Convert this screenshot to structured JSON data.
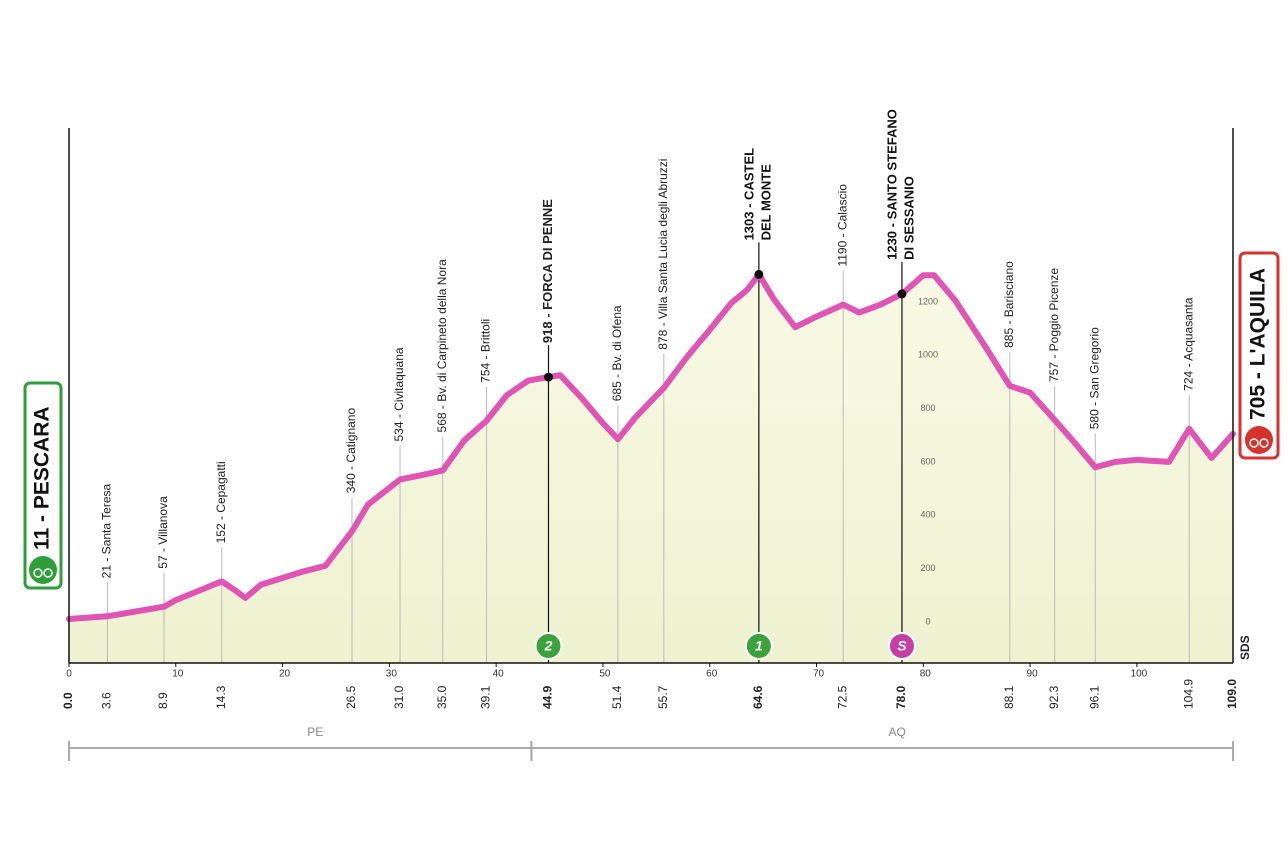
{
  "chart_data": {
    "type": "area",
    "color": "#e054b6",
    "x": [
      0,
      3.6,
      8.9,
      10,
      14.3,
      15.5,
      16.5,
      18,
      22,
      24,
      26.5,
      28,
      31,
      33,
      35,
      37,
      39.1,
      41,
      43,
      44.9,
      46,
      48,
      50,
      51.4,
      53,
      55.7,
      58,
      60,
      62,
      63.5,
      64.6,
      66,
      68,
      70,
      72.5,
      74,
      76,
      78,
      80,
      81,
      83,
      86,
      88.1,
      90,
      92.3,
      94,
      96.1,
      98,
      100,
      103,
      104.9,
      107,
      109
    ],
    "values": [
      11,
      21,
      57,
      82,
      152,
      120,
      90,
      140,
      190,
      210,
      340,
      440,
      534,
      550,
      568,
      680,
      754,
      850,
      905,
      918,
      925,
      840,
      745,
      685,
      765,
      878,
      1000,
      1095,
      1195,
      1245,
      1303,
      1210,
      1105,
      1145,
      1190,
      1160,
      1190,
      1230,
      1300,
      1300,
      1205,
      1020,
      885,
      860,
      757,
      680,
      580,
      600,
      608,
      600,
      724,
      615,
      705
    ],
    "xlim": [
      0,
      109
    ],
    "ylim": [
      -154,
      1852
    ],
    "xticks": [
      0,
      10,
      20,
      30,
      40,
      50,
      60,
      70,
      80,
      90,
      100
    ],
    "yticks": [
      0,
      200,
      400,
      600,
      800,
      1000,
      1200
    ],
    "waypoints": [
      {
        "km": {
          "value": 0,
          "label": "0.0"
        },
        "label": "11 - PESCARA",
        "kind": "start"
      },
      {
        "km": 3.6,
        "label": "21 - Santa Teresa"
      },
      {
        "km": 8.9,
        "label": "57 - Villanova"
      },
      {
        "km": 14.3,
        "label": "152 - Cepagatti"
      },
      {
        "km": 26.5,
        "label": "340 - Catignano"
      },
      {
        "km": {
          "value": 31,
          "label": "31.0"
        },
        "label": "534 - Civitaquana"
      },
      {
        "km": {
          "value": 35,
          "label": "35.0"
        },
        "label": "568 - Bv. di Carpineto della Nora"
      },
      {
        "km": 39.1,
        "label": "754 - Brittoli"
      },
      {
        "km": 44.9,
        "label": "918 - FORCA DI PENNE",
        "kind": "climb",
        "badge": "2"
      },
      {
        "km": 51.4,
        "label": "685 - Bv. di Ofena"
      },
      {
        "km": 55.7,
        "label": "878 - Villa Santa Lucia degli Abruzzi"
      },
      {
        "km": 64.6,
        "label": [
          "1303 - CASTEL",
          "DEL MONTE"
        ],
        "kind": "climb",
        "badge": "1"
      },
      {
        "km": 72.5,
        "label": "1190 - Calascio"
      },
      {
        "km": {
          "value": 78,
          "label": "78.0"
        },
        "label": [
          "1230 - SANTO STEFANO",
          "DI SESSANIO"
        ],
        "kind": "sprint",
        "badge": "S"
      },
      {
        "km": 88.1,
        "label": "885 - Barisciano"
      },
      {
        "km": 92.3,
        "label": "757 - Poggio Picenze"
      },
      {
        "km": 96.1,
        "label": "580 - San Gregorio"
      },
      {
        "km": 104.9,
        "label": "724 - Acquasanta"
      },
      {
        "km": {
          "value": 109,
          "label": "109.0"
        },
        "label": "705 - L'AQUILA",
        "kind": "finish"
      }
    ],
    "regions": [
      {
        "label": "PE",
        "from": 0,
        "to": 43.3
      },
      {
        "label": "AQ",
        "from": 43.3,
        "to": 109
      }
    ],
    "logo": "SDS"
  }
}
